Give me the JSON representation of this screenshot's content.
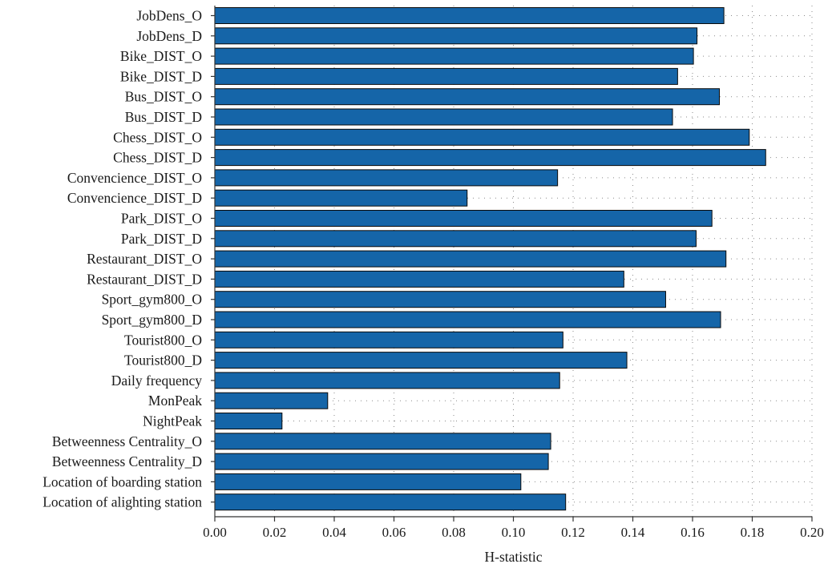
{
  "chart_data": {
    "type": "bar",
    "orientation": "horizontal",
    "categories": [
      "JobDens_O",
      "JobDens_D",
      "Bike_DIST_O",
      "Bike_DIST_D",
      "Bus_DIST_O",
      "Bus_DIST_D",
      "Chess_DIST_O",
      "Chess_DIST_D",
      "Convencience_DIST_O",
      "Convencience_DIST_D",
      "Park_DIST_O",
      "Park_DIST_D",
      "Restaurant_DIST_O",
      "Restaurant_DIST_D",
      "Sport_gym800_O",
      "Sport_gym800_D",
      "Tourist800_O",
      "Tourist800_D",
      "Daily frequency",
      "MonPeak",
      "NightPeak",
      "Betweenness Centrality_O",
      "Betweenness Centrality_D",
      "Location of boarding station",
      "Location of alighting station"
    ],
    "values": [
      0.1705,
      0.1615,
      0.1603,
      0.155,
      0.169,
      0.1533,
      0.179,
      0.1845,
      0.1148,
      0.0845,
      0.1665,
      0.1612,
      0.1712,
      0.137,
      0.151,
      0.1694,
      0.1166,
      0.138,
      0.1155,
      0.0378,
      0.0225,
      0.1125,
      0.1117,
      0.1025,
      0.1175
    ],
    "xlabel": "H-statistic",
    "ylabel": "",
    "title": "",
    "xlim": [
      0,
      0.2
    ],
    "x_ticks": [
      "0.00",
      "0.02",
      "0.04",
      "0.06",
      "0.08",
      "0.10",
      "0.12",
      "0.14",
      "0.16",
      "0.18",
      "0.20"
    ],
    "grid": "dotted",
    "colors": {
      "bar": "#1565a8",
      "bar_edge": "#0a0a0a",
      "axis": "#333333",
      "grid": "#8a8a8a"
    }
  }
}
